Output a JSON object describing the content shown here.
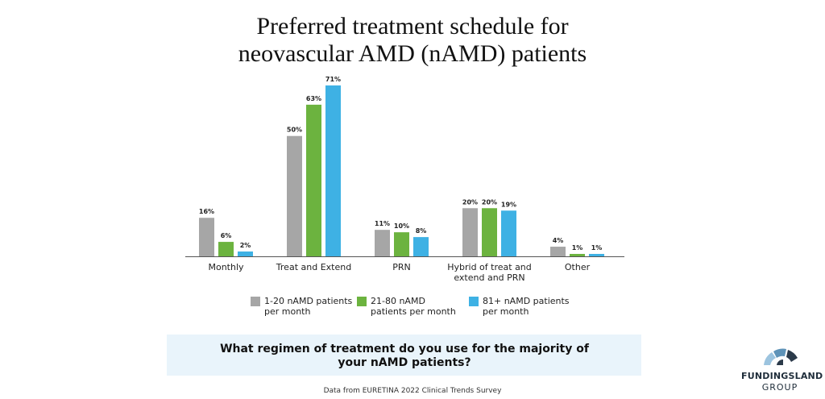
{
  "chart_data": {
    "type": "bar",
    "title": "Preferred treatment schedule for neovascular AMD (nAMD) patients",
    "categories": [
      "Monthly",
      "Treat and Extend",
      "PRN",
      "Hybrid of treat and extend and PRN",
      "Other"
    ],
    "series": [
      {
        "name": "1-20 nAMD patients per month",
        "color": "#a6a6a6",
        "values": [
          16,
          50,
          11,
          20,
          4
        ],
        "value_labels": [
          "16%",
          "50%",
          "11%",
          "20%",
          "4%"
        ]
      },
      {
        "name": "21-80 nAMD patients per month",
        "color": "#6cb33f",
        "values": [
          6,
          63,
          10,
          20,
          1
        ],
        "value_labels": [
          "6%",
          "63%",
          "10%",
          "20%",
          "1%"
        ]
      },
      {
        "name": "81+ nAMD patients per month",
        "color": "#3eb1e4",
        "values": [
          2,
          71,
          8,
          19,
          1
        ],
        "value_labels": [
          "2%",
          "71%",
          "8%",
          "19%",
          "1%"
        ]
      }
    ]
  },
  "question": "What regimen of treatment do you use for the majority of your nAMD patients?",
  "source": "Data from EURETINA 2022 Clinical Trends Survey",
  "logo": {
    "name": "FUNDINGSLAND",
    "sub": "GROUP"
  }
}
